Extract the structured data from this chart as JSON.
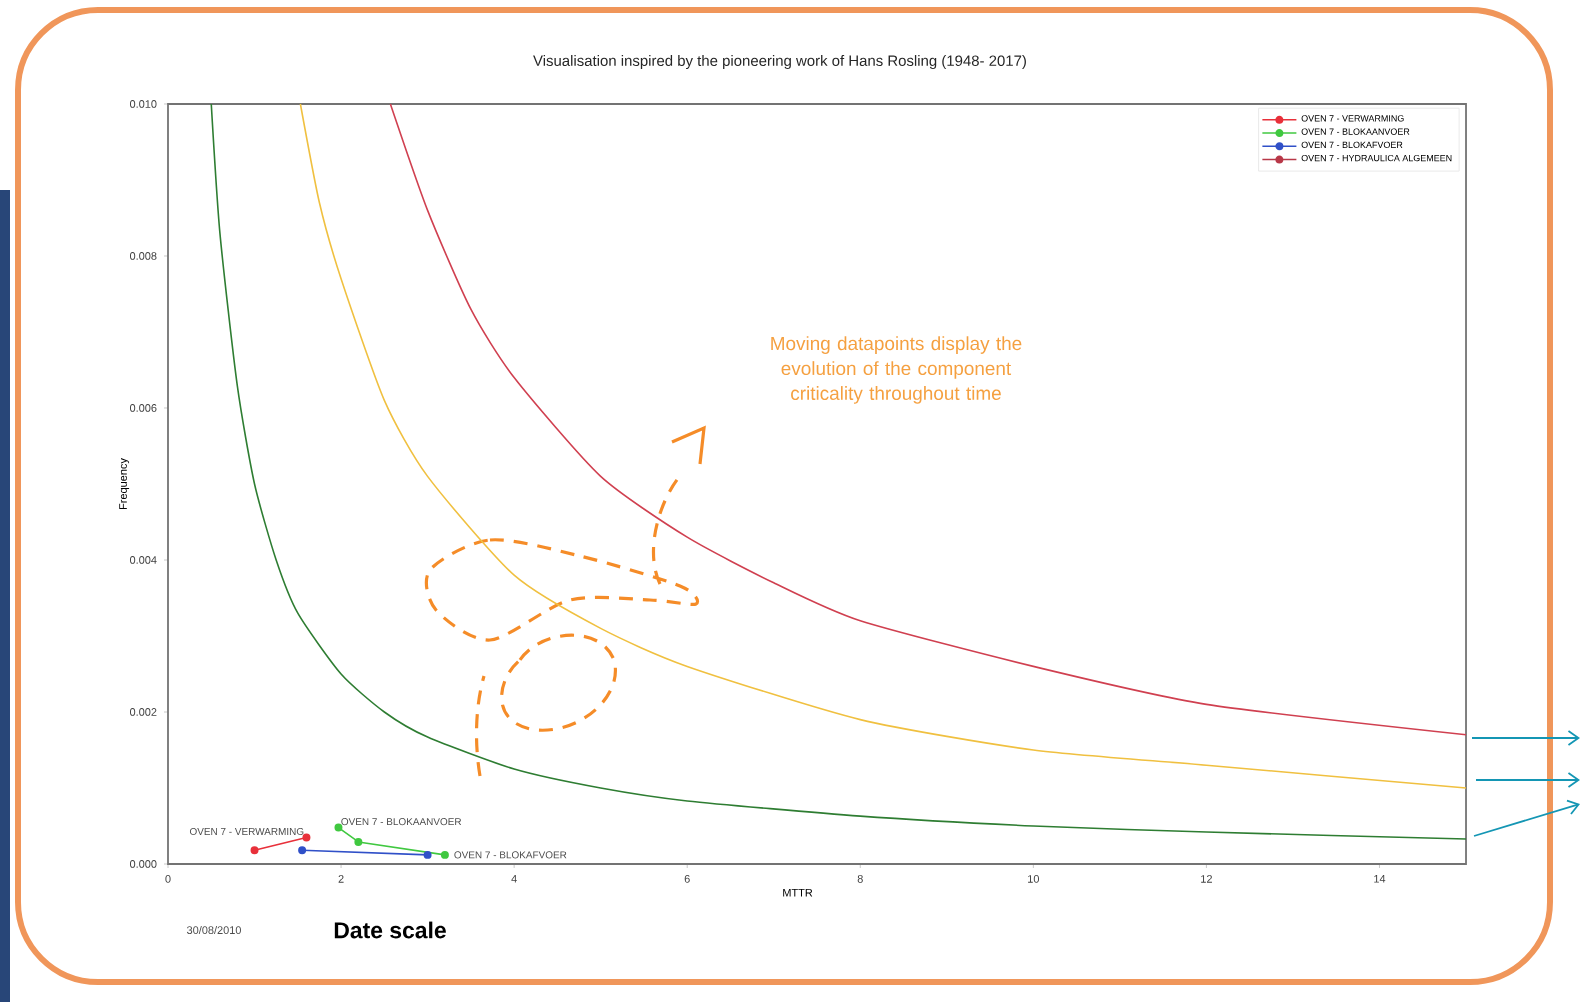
{
  "chart_data": {
    "type": "line",
    "title": "Visualisation inspired by the pioneering work of Hans Rosling (1948- 2017)",
    "xlabel": "MTTR",
    "ylabel": "Frequency",
    "xlim": [
      0,
      15
    ],
    "ylim": [
      0,
      0.01
    ],
    "xticks": [
      0,
      2,
      4,
      6,
      8,
      10,
      12,
      14
    ],
    "yticks": [
      {
        "value": 0,
        "label": "0.000"
      },
      {
        "value": 0.002,
        "label": "0.002"
      },
      {
        "value": 0.004,
        "label": "0.004"
      },
      {
        "value": 0.006,
        "label": "0.006"
      },
      {
        "value": 0.008,
        "label": "0.008"
      },
      {
        "value": 0.01,
        "label": "0.010"
      }
    ],
    "grid": false,
    "legend": "top right",
    "marker": "circle",
    "series": [
      {
        "color": "#2e7d32",
        "marker": "none",
        "x": [
          0.5,
          0.6,
          0.8,
          1,
          1.25,
          1.5,
          2,
          2.5,
          3,
          4,
          5,
          6,
          8,
          10,
          12,
          15
        ],
        "values": [
          0.01,
          0.0083,
          0.0063,
          0.005,
          0.004,
          0.0033,
          0.0025,
          0.002,
          0.00167,
          0.00125,
          0.001,
          0.00083,
          0.00063,
          0.0005,
          0.00042,
          0.00033
        ]
      },
      {
        "color": "#f0c040",
        "marker": "none",
        "x": [
          1.53,
          1.75,
          2,
          2.5,
          3,
          4,
          5,
          6,
          8,
          10,
          12,
          15
        ],
        "values": [
          0.01,
          0.0087,
          0.0077,
          0.0061,
          0.0051,
          0.0038,
          0.0031,
          0.0026,
          0.0019,
          0.0015,
          0.0013,
          0.001
        ]
      },
      {
        "color": "#d04050",
        "marker": "none",
        "x": [
          2.57,
          3,
          3.5,
          4,
          5,
          6,
          7,
          8,
          10,
          12,
          15
        ],
        "values": [
          0.01,
          0.0086,
          0.0073,
          0.0064,
          0.0051,
          0.0043,
          0.0037,
          0.0032,
          0.0026,
          0.0021,
          0.0017
        ]
      },
      {
        "name": "OVEN 7 - VERWARMING",
        "color": "#e8303a",
        "x": [
          1.0,
          1.6
        ],
        "values": [
          0.00018,
          0.00035
        ]
      },
      {
        "name": "OVEN 7 - BLOKAANVOER",
        "color": "#40c840",
        "x": [
          1.97,
          2.2,
          3.2
        ],
        "values": [
          0.00048,
          0.00029,
          0.00012
        ]
      },
      {
        "name": "OVEN 7 - BLOKAFVOER",
        "color": "#3050c8",
        "x": [
          1.55,
          3.0
        ],
        "values": [
          0.00018,
          0.00012
        ]
      },
      {
        "name": "OVEN 7 - HYDRAULICA ALGEMEEN",
        "color": "#b83848",
        "values": [
          null
        ]
      }
    ],
    "annotations": [
      "Moving datapoints display the evolution of the component criticality throughout time",
      "30/08/2010",
      "Date scale",
      {
        "text": "OVEN 7 - VERWARMING",
        "x": 1.6,
        "y": 0.00035
      },
      {
        "text": "OVEN 7 - BLOKAANVOER",
        "x": 1.97,
        "y": 0.00048
      },
      {
        "text": "OVEN 7 - BLOKAFVOER",
        "x": 3.0,
        "y": 0.00012
      }
    ]
  }
}
